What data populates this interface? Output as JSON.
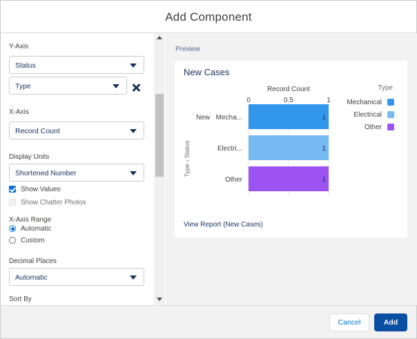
{
  "modal": {
    "title": "Add Component"
  },
  "left": {
    "y_axis": {
      "label": "Y-Axis",
      "value": "Status",
      "second_value": "Type"
    },
    "x_axis": {
      "label": "X-Axis",
      "value": "Record Count"
    },
    "display_units": {
      "label": "Display Units",
      "value": "Shortened Number"
    },
    "show_values": {
      "label": "Show Values",
      "checked": true
    },
    "show_chatter_photos": {
      "label": "Show Chatter Photos",
      "checked": false
    },
    "x_axis_range": {
      "label": "X-Axis Range",
      "options": [
        "Automatic",
        "Custom"
      ],
      "selected": "Automatic"
    },
    "decimal_places": {
      "label": "Decimal Places",
      "value": "Automatic"
    },
    "sort_by": {
      "label": "Sort By"
    }
  },
  "preview": {
    "label": "Preview",
    "card_title": "New Cases",
    "view_report": "View Report (New Cases)"
  },
  "chart_data": {
    "type": "bar",
    "orientation": "horizontal",
    "xlabel": "Record Count",
    "ylabel": "Type > Status",
    "ylabel_parts": [
      "Type",
      "Status"
    ],
    "xlim": [
      0,
      1
    ],
    "xticks": [
      "0",
      "0.5",
      "1"
    ],
    "group_label": "New",
    "categories": [
      "Mecha...",
      "Electri...",
      "Other"
    ],
    "values": [
      1,
      1,
      1
    ],
    "value_labels": [
      "1",
      "1",
      "1"
    ],
    "colors": [
      "#3296ed",
      "#77b9f2",
      "#9d53f2"
    ],
    "legend": {
      "title": "Type",
      "position": "top-right",
      "entries": [
        {
          "name": "Mechanical",
          "color": "#3296ed"
        },
        {
          "name": "Electrical",
          "color": "#77b9f2"
        },
        {
          "name": "Other",
          "color": "#9d53f2"
        }
      ]
    },
    "grid": true
  },
  "footer": {
    "cancel_label": "Cancel",
    "add_label": "Add"
  },
  "colors": {
    "brand": "#0b4fa3",
    "link": "#0070d2",
    "text": "#16325c"
  }
}
